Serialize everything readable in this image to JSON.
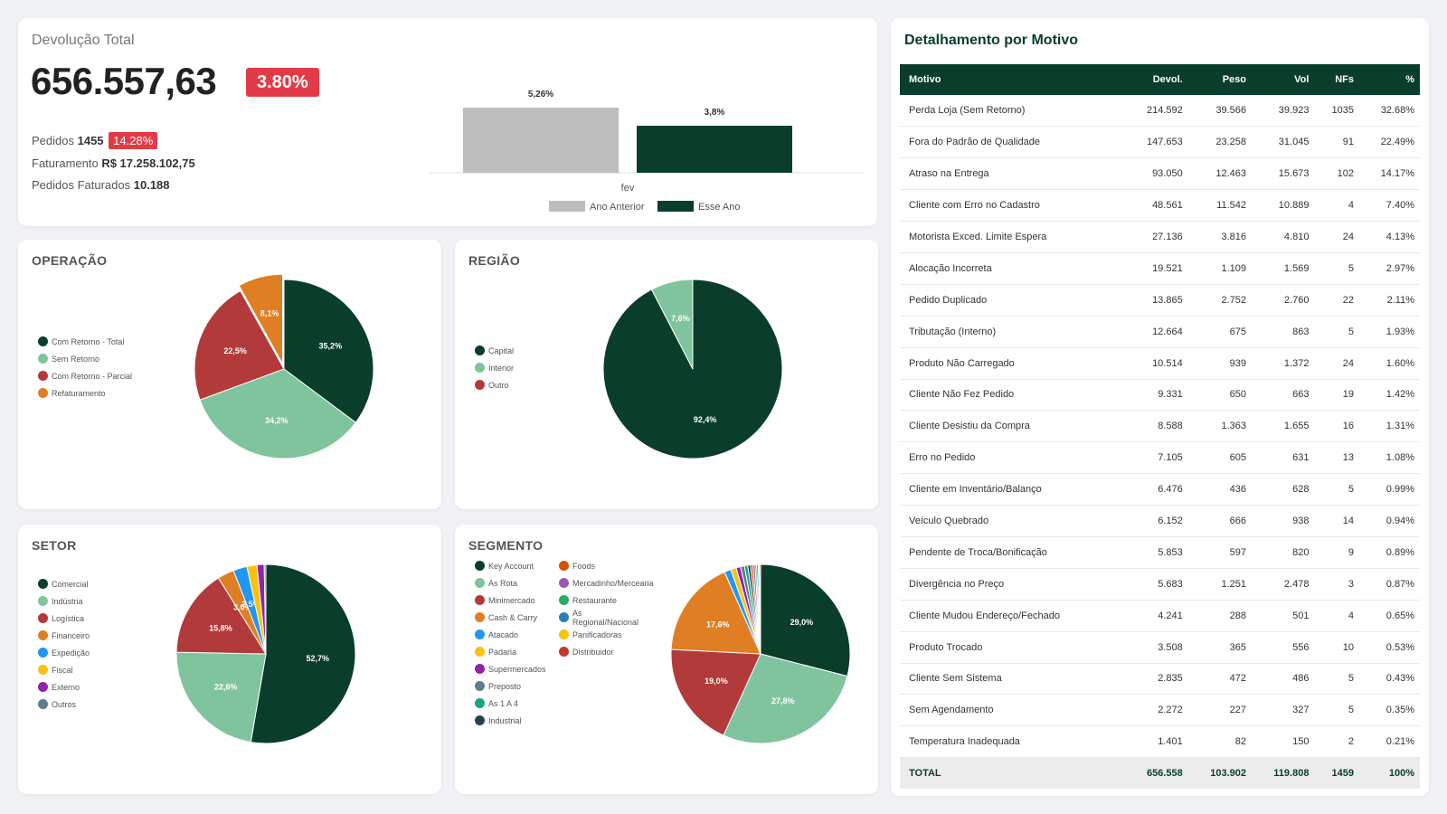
{
  "kpi": {
    "label": "Devolução Total",
    "value": "656.557,63",
    "badge": "3.80%",
    "pedidos_label": "Pedidos",
    "pedidos_value": "1455",
    "pedidos_badge": "14.28%",
    "faturamento_label": "Faturamento",
    "faturamento_value": "R$ 17.258.102,75",
    "faturados_label": "Pedidos Faturados",
    "faturados_value": "10.188"
  },
  "colors": {
    "dark_green": "#0a3d2a",
    "light_green": "#80c49d",
    "red": "#b33a3a",
    "orange": "#e07e23",
    "grey": "#bdbdbd"
  },
  "chart_data": [
    {
      "id": "comparativo",
      "type": "bar",
      "categories": [
        "fev"
      ],
      "series": [
        {
          "name": "Ano Anterior",
          "values": [
            5.26
          ],
          "labels": [
            "5,26%"
          ],
          "color": "#bdbdbd"
        },
        {
          "name": "Esse Ano",
          "values": [
            3.8
          ],
          "labels": [
            "3,8%"
          ],
          "color": "#0a3d2a"
        }
      ],
      "ylim": [
        0,
        6
      ]
    },
    {
      "id": "operacao",
      "type": "pie",
      "title": "OPERAÇÃO",
      "labels": [
        "Com Retorno - Total",
        "Sem Retorno",
        "Com Retorno - Parcial",
        "Refaturamento"
      ],
      "values": [
        35.2,
        34.2,
        22.5,
        8.1
      ],
      "value_labels": [
        "35,2%",
        "34,2%",
        "22,5%",
        "8,1%"
      ],
      "colors": [
        "#0a3d2a",
        "#80c49d",
        "#b33a3a",
        "#e07e23"
      ]
    },
    {
      "id": "regiao",
      "type": "pie",
      "title": "REGIÃO",
      "labels": [
        "Capital",
        "Interior",
        "Outro"
      ],
      "values": [
        92.4,
        7.6,
        0
      ],
      "value_labels": [
        "92,4%",
        "7,6%",
        ""
      ],
      "colors": [
        "#0a3d2a",
        "#80c49d",
        "#b33a3a"
      ]
    },
    {
      "id": "setor",
      "type": "pie",
      "title": "SETOR",
      "labels": [
        "Comercial",
        "Indústria",
        "Logística",
        "Financeiro",
        "Expedição",
        "Fiscal",
        "Externo",
        "Outros"
      ],
      "values": [
        52.7,
        22.6,
        15.8,
        3.0,
        2.5,
        1.8,
        1.3,
        0.3
      ],
      "value_labels": [
        "52,7%",
        "22,6%",
        "15,8%",
        "3,0%",
        "2,5%",
        "",
        "",
        ""
      ],
      "colors": [
        "#0a3d2a",
        "#80c49d",
        "#b33a3a",
        "#e07e23",
        "#2196f3",
        "#f9c20f",
        "#8e24aa",
        "#607d8b"
      ]
    },
    {
      "id": "segmento",
      "type": "pie",
      "title": "SEGMENTO",
      "labels": [
        "Key Account",
        "As Rota",
        "Minimercado",
        "Cash & Carry",
        "Atacado",
        "Padaria",
        "Supermercados",
        "Preposto",
        "As 1 A 4",
        "Industrial",
        "Foods",
        "Mercadinho/Mercearia",
        "Restaurante",
        "As Regional/Nacional",
        "Panificadoras",
        "Distribuidor"
      ],
      "values": [
        29.0,
        27.8,
        19.0,
        17.6,
        1.2,
        1.0,
        0.8,
        0.7,
        0.6,
        0.5,
        0.4,
        0.4,
        0.3,
        0.3,
        0.2,
        0.2
      ],
      "value_labels": [
        "29,0%",
        "27,8%",
        "19,0%",
        "17,6%",
        "",
        "",
        "",
        "",
        "",
        "",
        "",
        "",
        "",
        "",
        "",
        ""
      ],
      "colors": [
        "#0a3d2a",
        "#80c49d",
        "#b33a3a",
        "#e07e23",
        "#2196f3",
        "#f9c20f",
        "#8e24aa",
        "#607d8b",
        "#1aa57f",
        "#2c3e50",
        "#d35400",
        "#9b59b6",
        "#27ae60",
        "#2980b9",
        "#f1c40f",
        "#c0392b"
      ]
    }
  ],
  "table": {
    "title": "Detalhamento por Motivo",
    "headers": [
      "Motivo",
      "Devol.",
      "Peso",
      "Vol",
      "NFs",
      "%"
    ],
    "rows": [
      [
        "Perda Loja (Sem Retorno)",
        "214.592",
        "39.566",
        "39.923",
        "1035",
        "32.68%"
      ],
      [
        "Fora do Padrão de Qualidade",
        "147.653",
        "23.258",
        "31.045",
        "91",
        "22.49%"
      ],
      [
        "Atraso na Entrega",
        "93.050",
        "12.463",
        "15.673",
        "102",
        "14.17%"
      ],
      [
        "Cliente com Erro no Cadastro",
        "48.561",
        "11.542",
        "10.889",
        "4",
        "7.40%"
      ],
      [
        "Motorista Exced. Limite Espera",
        "27.136",
        "3.816",
        "4.810",
        "24",
        "4.13%"
      ],
      [
        "Alocação Incorreta",
        "19.521",
        "1.109",
        "1.569",
        "5",
        "2.97%"
      ],
      [
        "Pedido Duplicado",
        "13.865",
        "2.752",
        "2.760",
        "22",
        "2.11%"
      ],
      [
        "Tributação (Interno)",
        "12.664",
        "675",
        "863",
        "5",
        "1.93%"
      ],
      [
        "Produto Não Carregado",
        "10.514",
        "939",
        "1.372",
        "24",
        "1.60%"
      ],
      [
        "Cliente Não Fez Pedido",
        "9.331",
        "650",
        "663",
        "19",
        "1.42%"
      ],
      [
        "Cliente Desistiu da Compra",
        "8.588",
        "1.363",
        "1.655",
        "16",
        "1.31%"
      ],
      [
        "Erro no Pedido",
        "7.105",
        "605",
        "631",
        "13",
        "1.08%"
      ],
      [
        "Cliente em Inventário/Balanço",
        "6.476",
        "436",
        "628",
        "5",
        "0.99%"
      ],
      [
        "Veículo Quebrado",
        "6.152",
        "666",
        "938",
        "14",
        "0.94%"
      ],
      [
        "Pendente de Troca/Bonificação",
        "5.853",
        "597",
        "820",
        "9",
        "0.89%"
      ],
      [
        "Divergência no Preço",
        "5.683",
        "1.251",
        "2.478",
        "3",
        "0.87%"
      ],
      [
        "Cliente Mudou Endereço/Fechado",
        "4.241",
        "288",
        "501",
        "4",
        "0.65%"
      ],
      [
        "Produto Trocado",
        "3.508",
        "365",
        "556",
        "10",
        "0.53%"
      ],
      [
        "Cliente Sem Sistema",
        "2.835",
        "472",
        "486",
        "5",
        "0.43%"
      ],
      [
        "Sem Agendamento",
        "2.272",
        "227",
        "327",
        "5",
        "0.35%"
      ],
      [
        "Temperatura Inadequada",
        "1.401",
        "82",
        "150",
        "2",
        "0.21%"
      ]
    ],
    "total": [
      "TOTAL",
      "656.558",
      "103.902",
      "119.808",
      "1459",
      "100%"
    ]
  }
}
